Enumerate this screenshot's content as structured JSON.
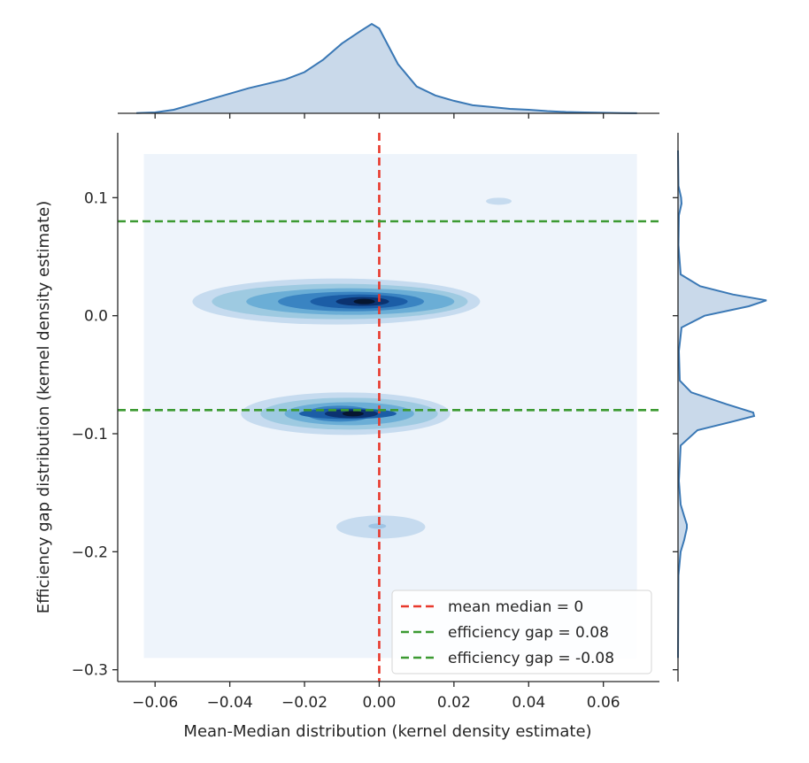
{
  "chart_data": {
    "type": "jointplot-kde",
    "xlabel": "Mean-Median distribution (kernel density estimate)",
    "ylabel": "Efficiency gap distribution (kernel density estimate)",
    "xlim": [
      -0.07,
      0.075
    ],
    "ylim": [
      -0.31,
      0.155
    ],
    "xticks": [
      -0.06,
      -0.04,
      -0.02,
      0.0,
      0.02,
      0.04,
      0.06
    ],
    "xtick_labels": [
      "−0.06",
      "−0.04",
      "−0.02",
      "0.00",
      "0.02",
      "0.04",
      "0.06"
    ],
    "yticks": [
      0.1,
      0.0,
      -0.1,
      -0.2,
      -0.3
    ],
    "ytick_labels": [
      "0.1",
      "0.0",
      "−0.1",
      "−0.2",
      "−0.3"
    ],
    "kde_background_extent": {
      "x": [
        -0.063,
        0.069
      ],
      "y": [
        -0.29,
        0.137
      ]
    },
    "kde_clusters": [
      {
        "name": "upper cluster",
        "x_range": [
          -0.05,
          0.027
        ],
        "y_center": 0.012,
        "peak_x": -0.004
      },
      {
        "name": "middle cluster",
        "x_range": [
          -0.037,
          0.019
        ],
        "y_center": -0.083,
        "peak_x": -0.007
      },
      {
        "name": "lower cluster",
        "x_range": [
          -0.011,
          0.009
        ],
        "y_center": -0.179,
        "peak_x": -0.001
      },
      {
        "name": "small blob",
        "x_range": [
          0.03,
          0.034
        ],
        "y_center": 0.097,
        "peak_x": 0.032
      }
    ],
    "reference_lines": [
      {
        "orientation": "vertical",
        "value": 0.0,
        "color": "#e8392c",
        "style": "dashed",
        "label": "mean median = 0"
      },
      {
        "orientation": "horizontal",
        "value": 0.08,
        "color": "#3c9a32",
        "style": "dashed",
        "label": "efficiency gap = 0.08"
      },
      {
        "orientation": "horizontal",
        "value": -0.08,
        "color": "#3c9a32",
        "style": "dashed",
        "label": "efficiency gap = -0.08"
      }
    ],
    "legend": {
      "placement": "lower-right",
      "entries": [
        {
          "label": "mean median = 0",
          "color": "#e8392c"
        },
        {
          "label": "efficiency gap = 0.08",
          "color": "#3c9a32"
        },
        {
          "label": "efficiency gap = -0.08",
          "color": "#3c9a32"
        }
      ]
    },
    "marginal_x": {
      "x": [
        -0.065,
        -0.06,
        -0.055,
        -0.05,
        -0.045,
        -0.04,
        -0.035,
        -0.03,
        -0.025,
        -0.02,
        -0.015,
        -0.01,
        -0.005,
        -0.002,
        0.0,
        0.005,
        0.01,
        0.015,
        0.02,
        0.025,
        0.03,
        0.035,
        0.04,
        0.045,
        0.05,
        0.055,
        0.06,
        0.065,
        0.069
      ],
      "density": [
        0.003,
        0.01,
        0.04,
        0.1,
        0.16,
        0.22,
        0.28,
        0.33,
        0.38,
        0.46,
        0.6,
        0.78,
        0.92,
        1.0,
        0.95,
        0.55,
        0.3,
        0.2,
        0.14,
        0.09,
        0.07,
        0.05,
        0.04,
        0.025,
        0.015,
        0.01,
        0.006,
        0.003,
        0.001
      ],
      "color": "#3a78b5",
      "fill": "#c9d9ea"
    },
    "marginal_y": {
      "y": [
        0.14,
        0.11,
        0.1,
        0.095,
        0.085,
        0.06,
        0.035,
        0.025,
        0.018,
        0.013,
        0.008,
        0.0,
        -0.01,
        -0.03,
        -0.055,
        -0.065,
        -0.075,
        -0.082,
        -0.085,
        -0.09,
        -0.097,
        -0.11,
        -0.14,
        -0.16,
        -0.17,
        -0.177,
        -0.18,
        -0.19,
        -0.2,
        -0.22,
        -0.29
      ],
      "density": [
        0.0,
        0.005,
        0.035,
        0.04,
        0.01,
        0.005,
        0.03,
        0.25,
        0.62,
        1.0,
        0.8,
        0.3,
        0.04,
        0.01,
        0.02,
        0.15,
        0.55,
        0.85,
        0.86,
        0.6,
        0.22,
        0.03,
        0.01,
        0.03,
        0.07,
        0.1,
        0.1,
        0.07,
        0.03,
        0.005,
        0.0
      ],
      "color": "#3a78b5",
      "fill": "#c9d9ea"
    }
  }
}
